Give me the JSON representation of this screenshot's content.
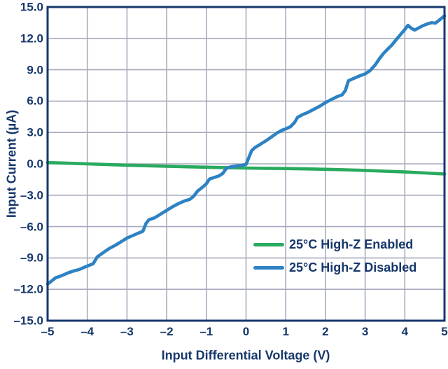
{
  "colors": {
    "text": "#16376b",
    "frame": "#16376b",
    "grid": "#a8abbd",
    "background": "#ffffff",
    "green_series": "#29aa5f",
    "blue_series": "#2d82c3"
  },
  "chart_data": {
    "type": "line",
    "title": "",
    "xlabel": "Input Differential Voltage (V)",
    "ylabel": "Input Current (µA)",
    "xlim": [
      -5,
      5
    ],
    "ylim": [
      -15,
      15
    ],
    "grid": true,
    "legend_position": "inside-bottom-right",
    "x_ticks": [
      {
        "v": -5,
        "label": "–5"
      },
      {
        "v": -4,
        "label": "–4"
      },
      {
        "v": -3,
        "label": "–3"
      },
      {
        "v": -2,
        "label": "–2"
      },
      {
        "v": -1,
        "label": "–1"
      },
      {
        "v": 0,
        "label": "0"
      },
      {
        "v": 1,
        "label": "1"
      },
      {
        "v": 2,
        "label": "2"
      },
      {
        "v": 3,
        "label": "3"
      },
      {
        "v": 4,
        "label": "4"
      },
      {
        "v": 5,
        "label": "5"
      }
    ],
    "y_ticks": [
      {
        "v": 15,
        "label": "15.0"
      },
      {
        "v": 12,
        "label": "12.0"
      },
      {
        "v": 9,
        "label": "9.0"
      },
      {
        "v": 6,
        "label": "6.0"
      },
      {
        "v": 3,
        "label": "3.0"
      },
      {
        "v": 0,
        "label": "0.0"
      },
      {
        "v": -3,
        "label": "–3.0"
      },
      {
        "v": -6,
        "label": "–6.0"
      },
      {
        "v": -9,
        "label": "–9.0"
      },
      {
        "v": -12,
        "label": "–12.0"
      },
      {
        "v": -15,
        "label": "–15.0"
      }
    ],
    "series": [
      {
        "name": "25°C High-Z Enabled",
        "color": "#29aa5f",
        "points": [
          [
            -5,
            0.12
          ],
          [
            -4.5,
            0.06
          ],
          [
            -4,
            0.0
          ],
          [
            -3.5,
            -0.07
          ],
          [
            -3,
            -0.13
          ],
          [
            -2.5,
            -0.18
          ],
          [
            -2,
            -0.23
          ],
          [
            -1.5,
            -0.28
          ],
          [
            -1,
            -0.32
          ],
          [
            -0.5,
            -0.36
          ],
          [
            0,
            -0.4
          ],
          [
            0.5,
            -0.43
          ],
          [
            1,
            -0.45
          ],
          [
            1.5,
            -0.48
          ],
          [
            2,
            -0.52
          ],
          [
            2.5,
            -0.57
          ],
          [
            3,
            -0.63
          ],
          [
            3.5,
            -0.7
          ],
          [
            4,
            -0.78
          ],
          [
            4.5,
            -0.87
          ],
          [
            5,
            -0.97
          ]
        ]
      },
      {
        "name": "25°C High-Z Disabled",
        "color": "#2d82c3",
        "points": [
          [
            -5.0,
            -11.5
          ],
          [
            -4.9,
            -11.2
          ],
          [
            -4.8,
            -10.9
          ],
          [
            -4.65,
            -10.7
          ],
          [
            -4.5,
            -10.45
          ],
          [
            -4.35,
            -10.25
          ],
          [
            -4.2,
            -10.1
          ],
          [
            -4.05,
            -9.85
          ],
          [
            -3.85,
            -9.55
          ],
          [
            -3.75,
            -8.9
          ],
          [
            -3.6,
            -8.5
          ],
          [
            -3.45,
            -8.1
          ],
          [
            -3.3,
            -7.8
          ],
          [
            -3.15,
            -7.45
          ],
          [
            -3.0,
            -7.1
          ],
          [
            -2.85,
            -6.85
          ],
          [
            -2.7,
            -6.6
          ],
          [
            -2.6,
            -6.45
          ],
          [
            -2.52,
            -5.7
          ],
          [
            -2.45,
            -5.35
          ],
          [
            -2.3,
            -5.15
          ],
          [
            -2.15,
            -4.8
          ],
          [
            -2.0,
            -4.45
          ],
          [
            -1.85,
            -4.1
          ],
          [
            -1.7,
            -3.8
          ],
          [
            -1.55,
            -3.55
          ],
          [
            -1.42,
            -3.4
          ],
          [
            -1.32,
            -3.1
          ],
          [
            -1.22,
            -2.6
          ],
          [
            -1.1,
            -2.25
          ],
          [
            -1.0,
            -1.9
          ],
          [
            -0.92,
            -1.45
          ],
          [
            -0.8,
            -1.3
          ],
          [
            -0.68,
            -1.15
          ],
          [
            -0.58,
            -0.9
          ],
          [
            -0.5,
            -0.45
          ],
          [
            -0.4,
            -0.3
          ],
          [
            -0.25,
            -0.2
          ],
          [
            -0.1,
            -0.15
          ],
          [
            0.0,
            -0.05
          ],
          [
            0.07,
            0.6
          ],
          [
            0.14,
            1.25
          ],
          [
            0.22,
            1.55
          ],
          [
            0.35,
            1.85
          ],
          [
            0.5,
            2.2
          ],
          [
            0.65,
            2.6
          ],
          [
            0.78,
            2.95
          ],
          [
            0.9,
            3.2
          ],
          [
            1.0,
            3.35
          ],
          [
            1.12,
            3.55
          ],
          [
            1.22,
            3.95
          ],
          [
            1.3,
            4.45
          ],
          [
            1.42,
            4.7
          ],
          [
            1.55,
            4.9
          ],
          [
            1.7,
            5.2
          ],
          [
            1.85,
            5.5
          ],
          [
            2.0,
            5.85
          ],
          [
            2.12,
            6.1
          ],
          [
            2.28,
            6.4
          ],
          [
            2.42,
            6.6
          ],
          [
            2.5,
            7.0
          ],
          [
            2.58,
            7.95
          ],
          [
            2.7,
            8.15
          ],
          [
            2.85,
            8.4
          ],
          [
            3.0,
            8.6
          ],
          [
            3.12,
            8.9
          ],
          [
            3.25,
            9.45
          ],
          [
            3.35,
            10.0
          ],
          [
            3.45,
            10.5
          ],
          [
            3.55,
            10.9
          ],
          [
            3.67,
            11.35
          ],
          [
            3.8,
            11.95
          ],
          [
            3.9,
            12.4
          ],
          [
            4.0,
            12.85
          ],
          [
            4.08,
            13.25
          ],
          [
            4.17,
            12.95
          ],
          [
            4.25,
            12.8
          ],
          [
            4.35,
            13.0
          ],
          [
            4.45,
            13.2
          ],
          [
            4.58,
            13.4
          ],
          [
            4.68,
            13.5
          ],
          [
            4.77,
            13.45
          ],
          [
            4.87,
            13.75
          ],
          [
            4.95,
            14.0
          ],
          [
            5.0,
            14.15
          ]
        ]
      }
    ]
  }
}
